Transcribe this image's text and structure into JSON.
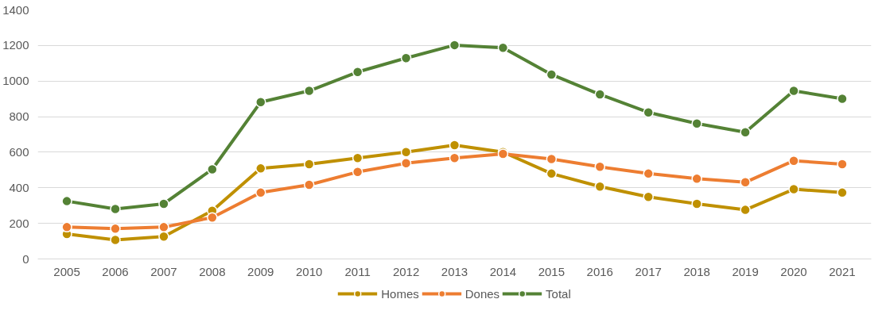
{
  "chart_data": {
    "type": "line",
    "categories": [
      "2005",
      "2006",
      "2007",
      "2008",
      "2009",
      "2010",
      "2011",
      "2012",
      "2013",
      "2014",
      "2015",
      "2016",
      "2017",
      "2018",
      "2019",
      "2020",
      "2021"
    ],
    "series": [
      {
        "name": "Homes",
        "color": "#bf9000",
        "values": [
          140,
          107,
          126,
          271,
          509,
          533,
          567,
          601,
          640,
          601,
          480,
          407,
          349,
          310,
          276,
          392,
          373
        ]
      },
      {
        "name": "Dones",
        "color": "#ed7d31",
        "values": [
          179,
          170,
          179,
          233,
          373,
          417,
          489,
          538,
          567,
          591,
          562,
          518,
          480,
          451,
          431,
          552,
          533
        ]
      },
      {
        "name": "Total",
        "color": "#548235",
        "values": [
          325,
          281,
          310,
          504,
          882,
          945,
          1051,
          1129,
          1202,
          1187,
          1037,
          925,
          824,
          761,
          712,
          945,
          901
        ]
      }
    ],
    "ylim": [
      0,
      1400
    ],
    "yticks": [
      0,
      200,
      400,
      600,
      800,
      1000,
      1200,
      1400
    ],
    "grid": "y",
    "legend": "bottom",
    "marker": "circle",
    "line_style": "solid"
  }
}
